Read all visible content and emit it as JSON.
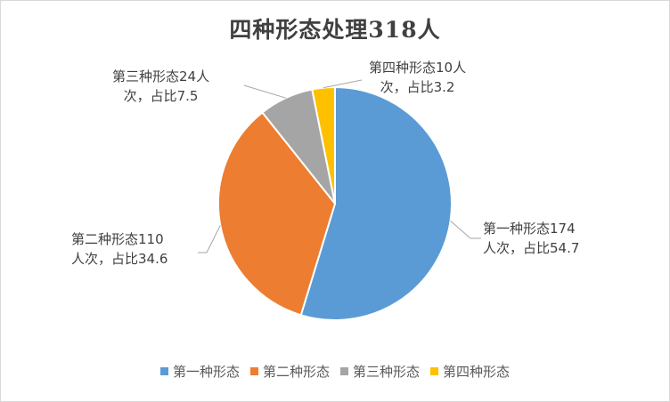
{
  "chart_data": {
    "type": "pie",
    "title": "四种形态处理318人",
    "categories": [
      "第一种形态",
      "第二种形态",
      "第三种形态",
      "第四种形态"
    ],
    "values": [
      174,
      110,
      24,
      10
    ],
    "percentages": [
      54.7,
      34.6,
      7.5,
      3.2
    ],
    "colors": [
      "#5b9bd5",
      "#ed7d31",
      "#a5a5a5",
      "#ffc000"
    ],
    "data_labels": [
      [
        "第一种形态174",
        "人次，占比54.7"
      ],
      [
        "第二种形态110",
        "人次，占比34.6"
      ],
      [
        "第三种形态24人",
        "次，占比7.5"
      ],
      [
        "第四种形态10人",
        "次，占比3.2"
      ]
    ],
    "legend_position": "bottom"
  }
}
